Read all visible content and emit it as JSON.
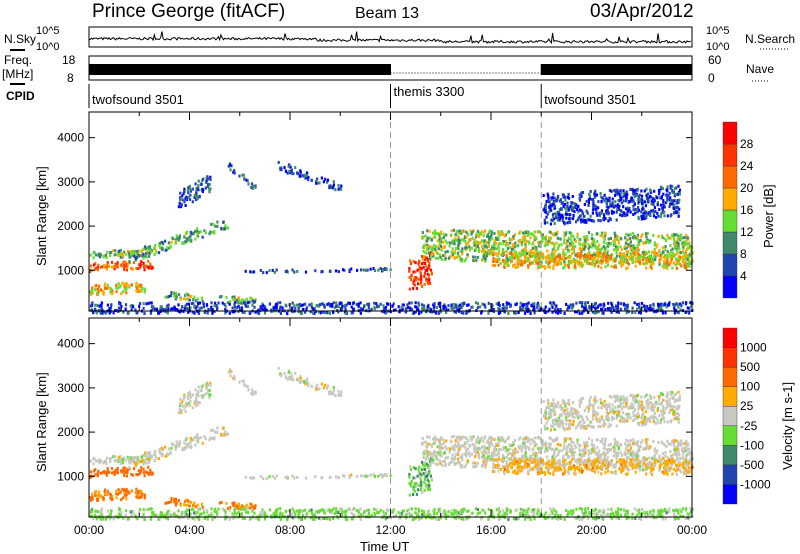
{
  "header": {
    "station": "Prince George (fitACF)",
    "beam": "Beam 13",
    "date": "03/Apr/2012"
  },
  "noise_panel": {
    "left_label": "N.Sky",
    "right_label": "N.Search",
    "ticks": [
      "10^5",
      "10^0"
    ]
  },
  "freq_panel": {
    "left_label_1": "Freq.",
    "left_label_2": "[MHz]",
    "left_ticks": [
      "18",
      "8"
    ],
    "right_label": "Nave",
    "right_ticks": [
      "60",
      "0"
    ]
  },
  "cpid": {
    "label": "CPID",
    "segments": [
      {
        "name": "twofsound 3501",
        "start": 0,
        "end": 12
      },
      {
        "name": "themis 3300",
        "start": 12,
        "end": 18
      },
      {
        "name": "twofsound 3501",
        "start": 18,
        "end": 24
      }
    ]
  },
  "chart_data": [
    {
      "type": "heatmap",
      "title": "Power",
      "ylabel": "Slant Range [km]",
      "xlabel": "",
      "ylim": [
        80,
        4580
      ],
      "xlim": [
        0,
        24
      ],
      "yticks": [
        "1000",
        "2000",
        "3000",
        "4000"
      ],
      "colorbar": {
        "label": "Power [dB]",
        "ticks": [
          "4",
          "8",
          "12",
          "16",
          "20",
          "24",
          "28"
        ],
        "colors": [
          "#0000ff",
          "#2244b0",
          "#3e8a6a",
          "#66dd33",
          "#ffaa00",
          "#ff6a00",
          "#ff3300",
          "#ff0000"
        ]
      },
      "echo_regions": [
        {
          "t": [
            0,
            2.5
          ],
          "r0": [
            1100,
            1150
          ],
          "w": 200,
          "power": 24,
          "vel": -300
        },
        {
          "t": [
            0,
            2.2
          ],
          "r0": [
            600,
            650
          ],
          "w": 250,
          "power": 18,
          "vel": -150
        },
        {
          "t": [
            0,
            2.5
          ],
          "r0": [
            1380,
            1420
          ],
          "w": 180,
          "power": 12,
          "vel": 0
        },
        {
          "t": [
            1.5,
            5.5
          ],
          "r0": [
            1300,
            2100
          ],
          "w": 250,
          "power": 12,
          "vel": 0
        },
        {
          "t": [
            3,
            4.5
          ],
          "r0": [
            480,
            400
          ],
          "w": 150,
          "power": 12,
          "vel": -150
        },
        {
          "t": [
            5,
            6.6
          ],
          "r0": [
            380,
            340
          ],
          "w": 140,
          "power": 12,
          "vel": -150
        },
        {
          "t": [
            3.5,
            4.8
          ],
          "r0": [
            2600,
            3000
          ],
          "w": 400,
          "power": 6,
          "vel": 0
        },
        {
          "t": [
            5.5,
            6.6
          ],
          "r0": [
            3400,
            2900
          ],
          "w": 150,
          "power": 8,
          "vel": 0
        },
        {
          "t": [
            7.5,
            10.0
          ],
          "r0": [
            3400,
            2900
          ],
          "w": 200,
          "power": 6,
          "vel": 0
        },
        {
          "t": [
            6,
            12
          ],
          "r0": [
            1000,
            1050
          ],
          "w": 60,
          "power": 6,
          "vel": 0
        },
        {
          "t": [
            12.7,
            13.6
          ],
          "r0": [
            900,
            1100
          ],
          "w": 700,
          "power": 26,
          "vel": 80
        },
        {
          "t": [
            13.2,
            24
          ],
          "r0": [
            1600,
            1500
          ],
          "w": 700,
          "power": 14,
          "vel": 0
        },
        {
          "t": [
            16,
            24
          ],
          "r0": [
            1250,
            1250
          ],
          "w": 350,
          "power": 18,
          "vel": -50
        },
        {
          "t": [
            18,
            23.5
          ],
          "r0": [
            2400,
            2600
          ],
          "w": 700,
          "power": 5,
          "vel": 0
        },
        {
          "t": [
            0,
            24
          ],
          "r0": [
            180,
            180
          ],
          "w": 250,
          "power": 5,
          "vel": 50
        }
      ]
    },
    {
      "type": "heatmap",
      "title": "Velocity",
      "ylabel": "Slant Range [km]",
      "xlabel": "Time UT",
      "ylim": [
        80,
        4580
      ],
      "xlim": [
        0,
        24
      ],
      "xticks": [
        "00:00",
        "04:00",
        "08:00",
        "12:00",
        "16:00",
        "20:00",
        "00:00"
      ],
      "yticks": [
        "1000",
        "2000",
        "3000",
        "4000"
      ],
      "colorbar": {
        "label": "Velocity [m s-1]",
        "ticks": [
          "1000",
          "500",
          "100",
          "25",
          "-25",
          "-100",
          "-500",
          "-1000"
        ],
        "colors": [
          "#0000ff",
          "#2244b0",
          "#3e8a6a",
          "#66dd33",
          "#c8c8c0",
          "#ffaa00",
          "#ff6a00",
          "#ff3300",
          "#ff0000"
        ]
      }
    }
  ]
}
